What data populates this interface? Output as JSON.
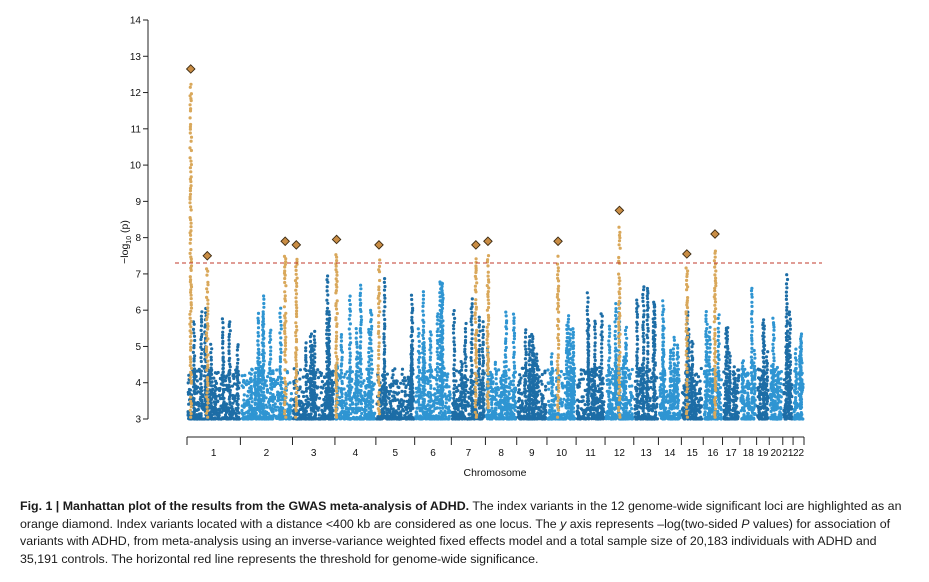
{
  "chart_data": {
    "type": "scatter",
    "subtype": "manhattan",
    "xlabel": "Chromosome",
    "ylabel": "−log10 (p)",
    "ylabel_main": "−log",
    "ylabel_sub": "10",
    "ylabel_tail": " (p)",
    "ylim": [
      3,
      14
    ],
    "yticks": [
      "3",
      "4",
      "5",
      "6",
      "7",
      "8",
      "9",
      "10",
      "11",
      "12",
      "13",
      "14"
    ],
    "grid": false,
    "threshold": 7.3,
    "colors": {
      "dark": "#1d6da6",
      "light": "#2f95d2",
      "highlight": "#d9a85b",
      "diamond_fill": "#c98d45",
      "threshold": "#c0392b"
    },
    "chromosomes": [
      {
        "label": "1",
        "light": false,
        "max": 6.2
      },
      {
        "label": "2",
        "light": true,
        "max": 6.5
      },
      {
        "label": "3",
        "light": false,
        "max": 7.0
      },
      {
        "label": "4",
        "light": true,
        "max": 6.8
      },
      {
        "label": "5",
        "light": false,
        "max": 7.0
      },
      {
        "label": "6",
        "light": true,
        "max": 7.2
      },
      {
        "label": "7",
        "light": false,
        "max": 6.7
      },
      {
        "label": "8",
        "light": true,
        "max": 6.1
      },
      {
        "label": "9",
        "light": false,
        "max": 5.6
      },
      {
        "label": "10",
        "light": true,
        "max": 6.6
      },
      {
        "label": "11",
        "light": false,
        "max": 6.7
      },
      {
        "label": "12",
        "light": true,
        "max": 6.6
      },
      {
        "label": "13",
        "light": false,
        "max": 6.9
      },
      {
        "label": "14",
        "light": true,
        "max": 6.3
      },
      {
        "label": "15",
        "light": false,
        "max": 6.0
      },
      {
        "label": "16",
        "light": true,
        "max": 7.0
      },
      {
        "label": "17",
        "light": false,
        "max": 6.5
      },
      {
        "label": "18",
        "light": true,
        "max": 6.8
      },
      {
        "label": "19",
        "light": false,
        "max": 6.5
      },
      {
        "label": "20",
        "light": true,
        "max": 6.1
      },
      {
        "label": "21",
        "light": false,
        "max": 7.2
      },
      {
        "label": "22",
        "light": true,
        "max": 5.6
      }
    ],
    "index_variants": [
      {
        "chr": "1",
        "pos": 0.07,
        "y": 12.65
      },
      {
        "chr": "1",
        "pos": 0.38,
        "y": 7.5
      },
      {
        "chr": "2",
        "pos": 0.86,
        "y": 7.9
      },
      {
        "chr": "3",
        "pos": 0.09,
        "y": 7.8
      },
      {
        "chr": "4",
        "pos": 0.04,
        "y": 7.95
      },
      {
        "chr": "5",
        "pos": 0.08,
        "y": 7.8
      },
      {
        "chr": "7",
        "pos": 0.72,
        "y": 7.8
      },
      {
        "chr": "8",
        "pos": 0.08,
        "y": 7.9
      },
      {
        "chr": "10",
        "pos": 0.38,
        "y": 7.9
      },
      {
        "chr": "12",
        "pos": 0.5,
        "y": 8.75
      },
      {
        "chr": "15",
        "pos": 0.25,
        "y": 7.55
      },
      {
        "chr": "16",
        "pos": 0.61,
        "y": 8.1
      }
    ]
  },
  "caption": {
    "label": "Fig. 1 | Manhattan plot of the results from the GWAS meta-analysis of ADHD.",
    "text_1": " The index variants in the 12 genome-wide significant loci are highlighted as an orange diamond. Index variants located with a distance <400 kb are considered as one locus. The ",
    "y_italic": "y",
    "text_2": " axis represents –log(two-sided ",
    "p_italic": "P",
    "text_3": " values) for association of variants with ADHD, from meta-analysis using an inverse-variance weighted fixed effects model and a total sample size of 20,183 individuals with ADHD and 35,191 controls. The horizontal red line represents the threshold for genome-wide significance."
  }
}
